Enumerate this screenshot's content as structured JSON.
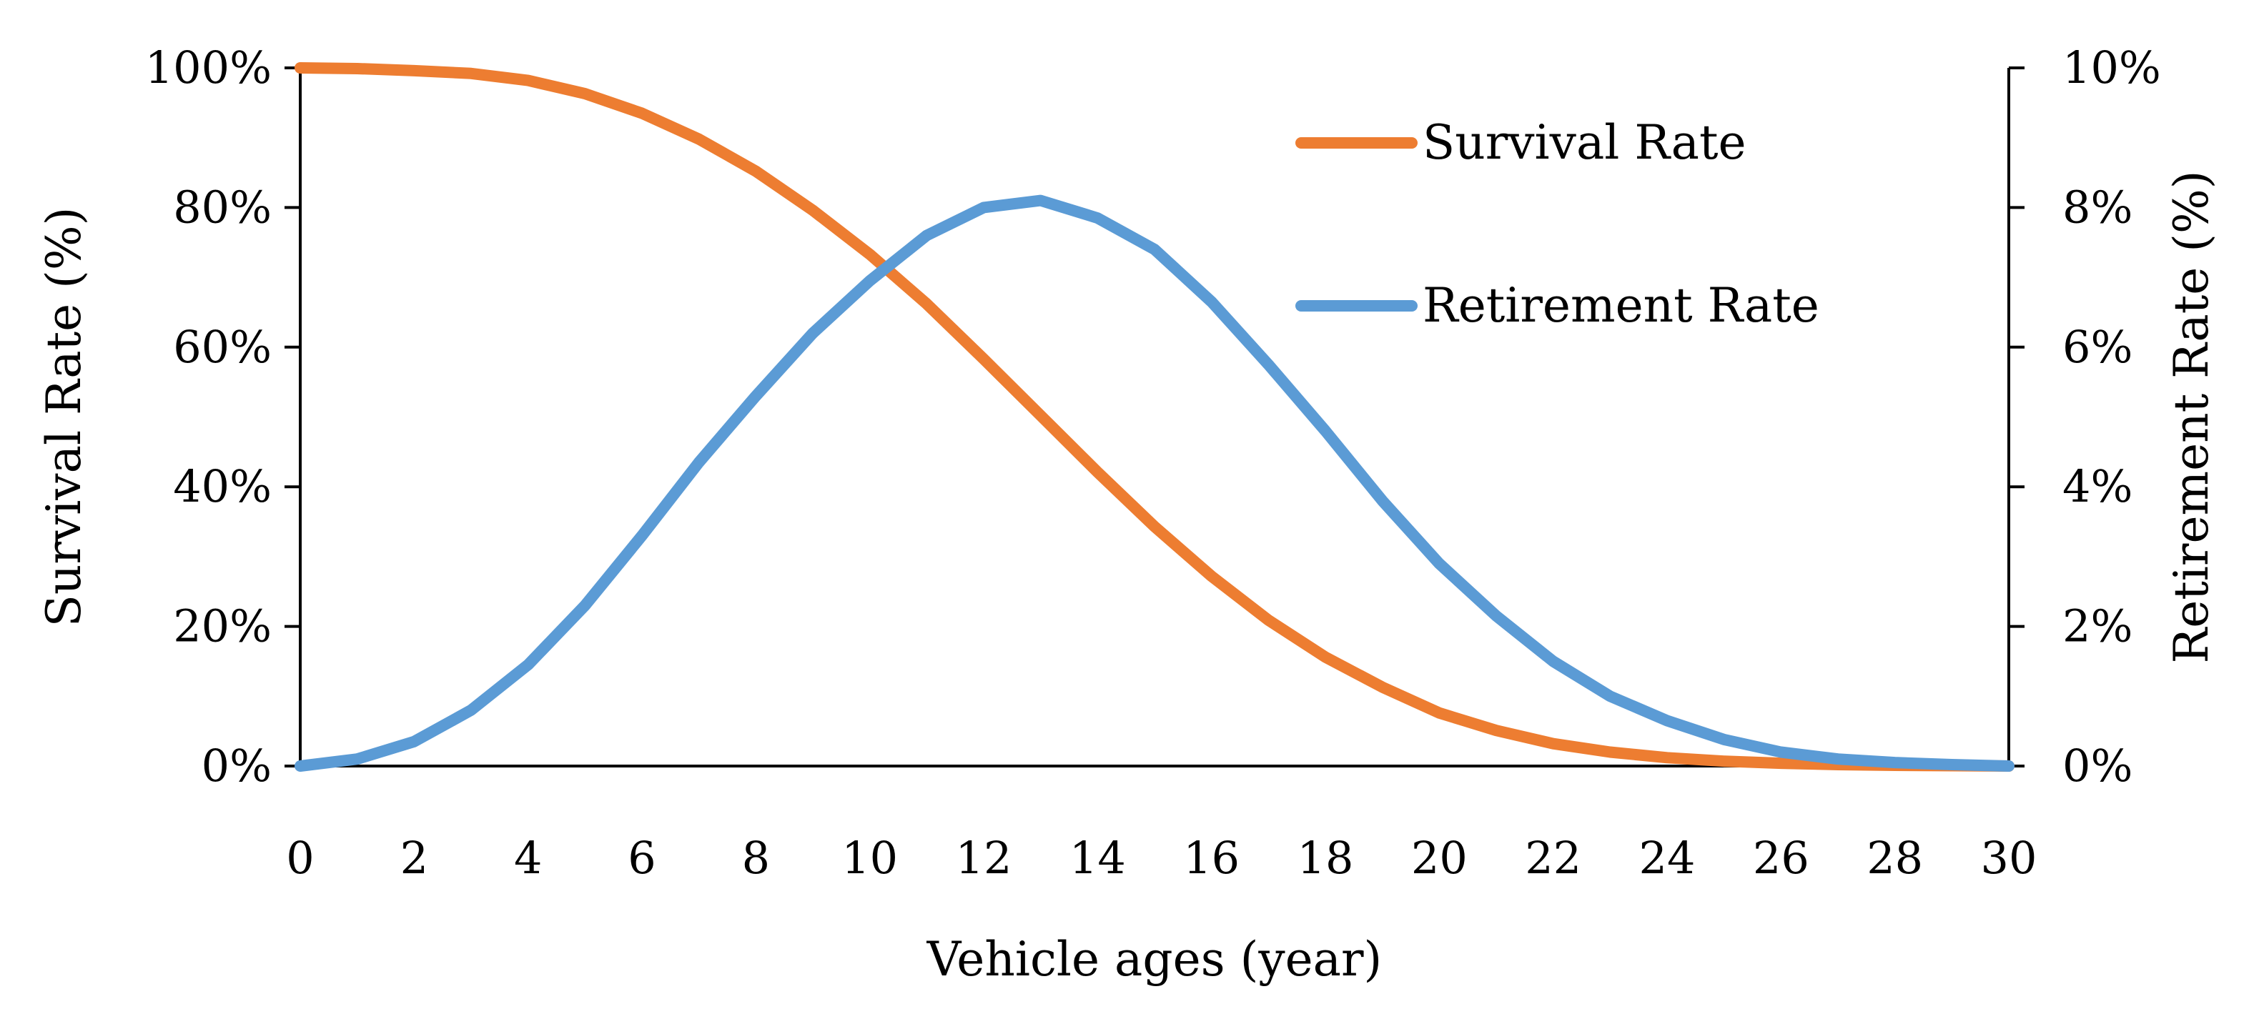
{
  "chart_data": {
    "type": "line",
    "xlabel": "Vehicle ages (year)",
    "ylabel": "Survival Rate (%)",
    "y2label": "Retirement Rate (%)",
    "xlim": [
      0,
      30
    ],
    "ylim": [
      0,
      100
    ],
    "y2lim": [
      0,
      10
    ],
    "x_ticks": [
      0,
      2,
      4,
      6,
      8,
      10,
      12,
      14,
      16,
      18,
      20,
      22,
      24,
      26,
      28,
      30
    ],
    "y_ticks": [
      "0%",
      "20%",
      "40%",
      "60%",
      "80%",
      "100%"
    ],
    "y2_ticks": [
      "0%",
      "2%",
      "4%",
      "6%",
      "8%",
      "10%"
    ],
    "grid": false,
    "legend": "top-right",
    "x": [
      0,
      1,
      2,
      3,
      4,
      5,
      6,
      7,
      8,
      9,
      10,
      11,
      12,
      13,
      14,
      15,
      16,
      17,
      18,
      19,
      20,
      21,
      22,
      23,
      24,
      25,
      26,
      27,
      28,
      29,
      30
    ],
    "series": [
      {
        "name": "Survival Rate",
        "axis": "left",
        "color": "#ED7D31",
        "values": [
          100,
          99.9,
          99.6,
          99.2,
          98.2,
          96.3,
          93.5,
          89.8,
          85.2,
          79.6,
          73.3,
          66.2,
          58.3,
          50.2,
          42.1,
          34.3,
          27.2,
          20.9,
          15.6,
          11.3,
          7.6,
          5.1,
          3.2,
          2.0,
          1.2,
          0.7,
          0.4,
          0.2,
          0.1,
          0.05,
          0
        ]
      },
      {
        "name": "Retirement Rate",
        "axis": "right",
        "color": "#5B9BD5",
        "values": [
          0,
          0.1,
          0.35,
          0.8,
          1.45,
          2.3,
          3.3,
          4.35,
          5.3,
          6.2,
          6.95,
          7.6,
          8.0,
          8.1,
          7.85,
          7.4,
          6.65,
          5.75,
          4.8,
          3.8,
          2.9,
          2.15,
          1.5,
          1.0,
          0.65,
          0.38,
          0.2,
          0.1,
          0.05,
          0.02,
          0
        ]
      }
    ]
  }
}
